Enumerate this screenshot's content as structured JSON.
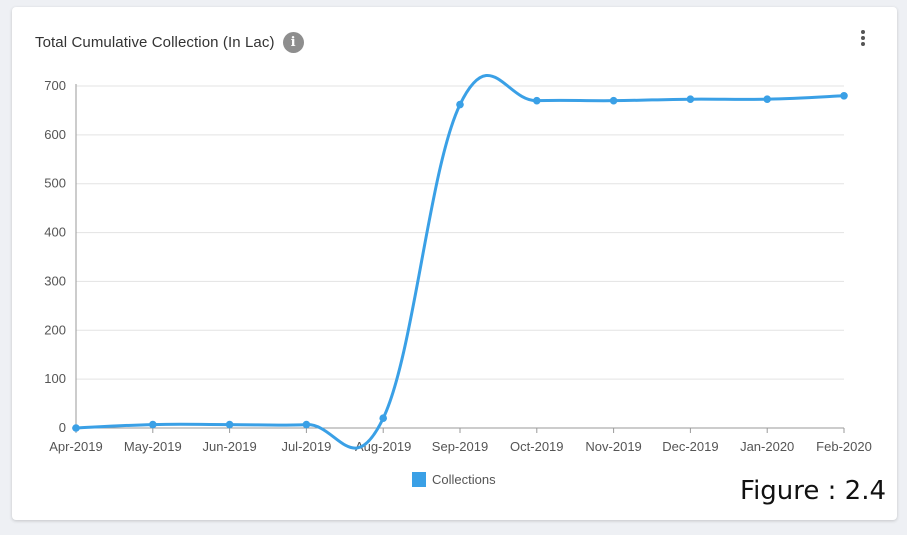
{
  "card": {
    "title": "Total Cumulative Collection (In Lac)",
    "info_icon": "info-icon",
    "menu_icon": "more-vert-icon"
  },
  "figure_label": "Figure : 2.4",
  "colors": {
    "series": "#3aa0e6",
    "grid": "#e3e3e3",
    "axis": "#9a9a9a",
    "tick_text": "#555555"
  },
  "chart_data": {
    "type": "line",
    "title": "Total Cumulative Collection (In Lac)",
    "xlabel": "",
    "ylabel": "",
    "categories": [
      "Apr-2019",
      "May-2019",
      "Jun-2019",
      "Jul-2019",
      "Aug-2019",
      "Sep-2019",
      "Oct-2019",
      "Nov-2019",
      "Dec-2019",
      "Jan-2020",
      "Feb-2020"
    ],
    "series": [
      {
        "name": "Collections",
        "values": [
          0,
          7,
          7,
          7,
          20,
          662,
          670,
          670,
          673,
          673,
          680
        ]
      }
    ],
    "ylim": [
      0,
      700
    ],
    "yticks": [
      0,
      100,
      200,
      300,
      400,
      500,
      600,
      700
    ],
    "grid": true,
    "legend": "bottom-center",
    "smooth": true
  }
}
